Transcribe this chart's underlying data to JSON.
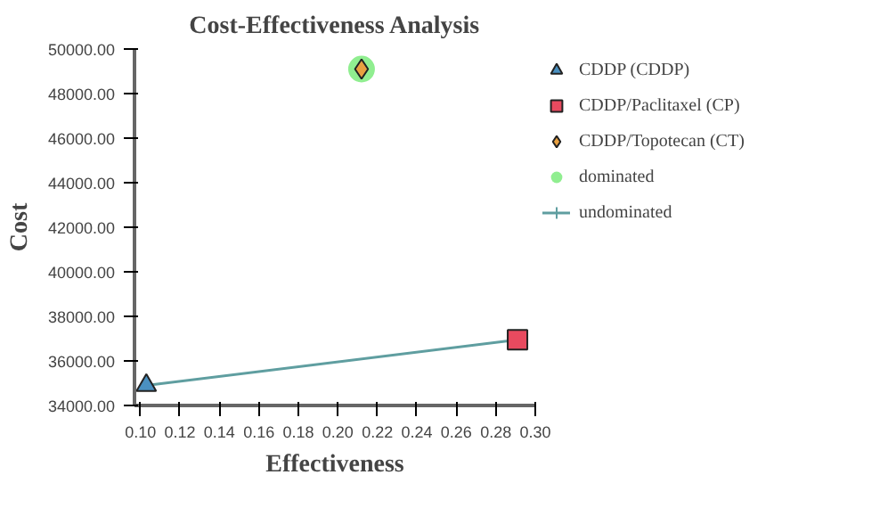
{
  "chart_data": {
    "type": "scatter",
    "title": "Cost-Effectiveness Analysis",
    "xlabel": "Effectiveness",
    "ylabel": "Cost",
    "xlim": [
      0.097,
      0.3
    ],
    "ylim": [
      34000,
      50000
    ],
    "xticks": [
      {
        "value": 0.1,
        "label": "0.10"
      },
      {
        "value": 0.12,
        "label": "0.12"
      },
      {
        "value": 0.14,
        "label": "0.14"
      },
      {
        "value": 0.16,
        "label": "0.16"
      },
      {
        "value": 0.18,
        "label": "0.18"
      },
      {
        "value": 0.2,
        "label": "0.20"
      },
      {
        "value": 0.22,
        "label": "0.22"
      },
      {
        "value": 0.24,
        "label": "0.24"
      },
      {
        "value": 0.26,
        "label": "0.26"
      },
      {
        "value": 0.28,
        "label": "0.28"
      },
      {
        "value": 0.3,
        "label": "0.30"
      }
    ],
    "yticks": [
      {
        "value": 34000,
        "label": "34000.00"
      },
      {
        "value": 36000,
        "label": "36000.00"
      },
      {
        "value": 38000,
        "label": "38000.00"
      },
      {
        "value": 40000,
        "label": "40000.00"
      },
      {
        "value": 42000,
        "label": "42000.00"
      },
      {
        "value": 44000,
        "label": "44000.00"
      },
      {
        "value": 46000,
        "label": "46000.00"
      },
      {
        "value": 48000,
        "label": "48000.00"
      },
      {
        "value": 50000,
        "label": "50000.00"
      }
    ],
    "grid": false,
    "legend": "right",
    "series": [
      {
        "name": "dominated",
        "marker": "circle",
        "color": "#90ee90",
        "x": [
          0.212
        ],
        "values": [
          49100
        ]
      },
      {
        "name": "undominated",
        "type": "line",
        "marker": "none",
        "color": "#5f9ea0",
        "x": [
          0.103,
          0.291
        ],
        "values": [
          34900,
          36950
        ]
      },
      {
        "name": "CDDP (CDDP)",
        "marker": "triangle",
        "color": "#4a90c0",
        "x": [
          0.103
        ],
        "values": [
          34900
        ]
      },
      {
        "name": "CDDP/Paclitaxel (CP)",
        "marker": "square",
        "color": "#e84a5f",
        "x": [
          0.291
        ],
        "values": [
          36950
        ]
      },
      {
        "name": "CDDP/Topotecan (CT)",
        "marker": "diamond",
        "color": "#e8a040",
        "x": [
          0.212
        ],
        "values": [
          49100
        ]
      }
    ]
  }
}
